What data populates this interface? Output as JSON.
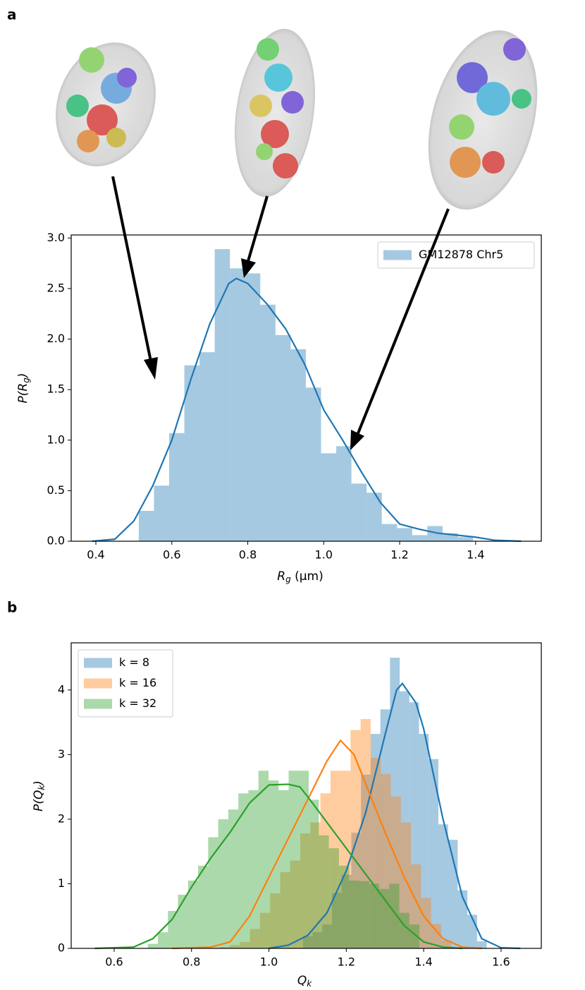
{
  "chart_data": [
    {
      "type": "histogram",
      "panel_label": "a",
      "xlabel": [
        "R",
        "g",
        " (μm)"
      ],
      "ylabel": [
        "P(",
        "R",
        "g",
        ")"
      ],
      "xlim": [
        0.335,
        1.573
      ],
      "ylim": [
        0,
        3.03
      ],
      "xticks": [
        0.4,
        0.6,
        0.8,
        {
          "value": 1,
          "label": "1.0"
        },
        1.2,
        1.4
      ],
      "yticks": [
        {
          "value": 0,
          "label": "0.0"
        },
        0.5,
        {
          "value": 1,
          "label": "1.0"
        },
        1.5,
        {
          "value": 2,
          "label": "2.0"
        },
        2.5,
        {
          "value": 3,
          "label": "3.0"
        }
      ],
      "legend": "upper right",
      "opacity": 0.4,
      "series": [
        {
          "name": "GM12878 Chr5",
          "color": "#1f77b4",
          "bins": [
            0.513,
            0.553,
            0.593,
            0.633,
            0.673,
            0.713,
            0.753,
            0.793,
            0.833,
            0.873,
            0.913,
            0.953,
            0.993,
            1.033,
            1.073,
            1.113,
            1.153,
            1.193,
            1.233,
            1.273,
            1.313,
            1.353,
            1.393
          ],
          "values": [
            0.3,
            0.55,
            1.07,
            1.74,
            1.87,
            2.89,
            2.7,
            2.65,
            2.34,
            2.04,
            1.9,
            1.52,
            0.87,
            0.94,
            0.57,
            0.48,
            0.17,
            0.13,
            0.06,
            0.15,
            0.08,
            0.04
          ],
          "kde_x": [
            0.39,
            0.45,
            0.5,
            0.55,
            0.6,
            0.65,
            0.7,
            0.75,
            0.77,
            0.8,
            0.85,
            0.9,
            0.95,
            1.0,
            1.05,
            1.1,
            1.15,
            1.2,
            1.25,
            1.3,
            1.35,
            1.4,
            1.45,
            1.52
          ],
          "kde_y": [
            0,
            0.02,
            0.2,
            0.55,
            1.0,
            1.6,
            2.15,
            2.55,
            2.6,
            2.55,
            2.35,
            2.1,
            1.75,
            1.3,
            1.0,
            0.68,
            0.38,
            0.17,
            0.12,
            0.08,
            0.06,
            0.04,
            0.01,
            0
          ]
        }
      ]
    },
    {
      "type": "histogram",
      "panel_label": "b",
      "xlabel": [
        "Q",
        "k"
      ],
      "ylabel": [
        "P(",
        "Q",
        "k",
        ")"
      ],
      "xlim": [
        0.489,
        1.704
      ],
      "ylim": [
        0,
        4.73
      ],
      "xticks": [
        0.6,
        0.8,
        {
          "value": 1,
          "label": "1.0"
        },
        1.2,
        1.4,
        1.6
      ],
      "yticks": [
        0,
        1,
        2,
        3,
        4
      ],
      "legend": "upper left",
      "opacity": 0.4,
      "series": [
        {
          "name": "k = 8",
          "color": "#1f77b4",
          "bins": [
            1.088,
            1.113,
            1.138,
            1.163,
            1.188,
            1.213,
            1.238,
            1.263,
            1.288,
            1.313,
            1.338,
            1.363,
            1.388,
            1.413,
            1.438,
            1.463,
            1.488,
            1.513,
            1.538,
            1.563
          ],
          "values": [
            0.19,
            0.25,
            0.37,
            0.86,
            1.14,
            1.79,
            2.69,
            3.32,
            3.7,
            4.5,
            3.98,
            3.81,
            3.32,
            2.93,
            1.92,
            1.68,
            0.9,
            0.52,
            0.11
          ],
          "kde_x": [
            1.0,
            1.05,
            1.1,
            1.15,
            1.2,
            1.25,
            1.3,
            1.33,
            1.345,
            1.38,
            1.4,
            1.45,
            1.5,
            1.55,
            1.6,
            1.65
          ],
          "kde_y": [
            0,
            0.05,
            0.2,
            0.55,
            1.2,
            2.1,
            3.3,
            4.0,
            4.1,
            3.8,
            3.4,
            2.0,
            0.8,
            0.15,
            0.01,
            0
          ]
        },
        {
          "name": "k = 16",
          "color": "#ff7f0e",
          "bins": [
            0.873,
            0.899,
            0.925,
            0.951,
            0.977,
            1.003,
            1.029,
            1.055,
            1.081,
            1.107,
            1.133,
            1.159,
            1.185,
            1.211,
            1.237,
            1.263,
            1.289,
            1.315,
            1.341,
            1.367,
            1.393,
            1.419,
            1.445,
            1.471
          ],
          "values": [
            0.02,
            0.05,
            0.1,
            0.3,
            0.55,
            0.85,
            1.18,
            1.36,
            1.78,
            1.95,
            2.4,
            2.75,
            2.75,
            3.38,
            3.55,
            2.95,
            2.7,
            2.35,
            1.95,
            1.3,
            0.78,
            0.38,
            0.12
          ],
          "kde_x": [
            0.75,
            0.85,
            0.9,
            0.95,
            1.0,
            1.05,
            1.1,
            1.15,
            1.185,
            1.22,
            1.25,
            1.3,
            1.35,
            1.4,
            1.45,
            1.5,
            1.55
          ],
          "kde_y": [
            0,
            0.02,
            0.1,
            0.5,
            1.1,
            1.7,
            2.3,
            2.9,
            3.22,
            3.0,
            2.55,
            1.8,
            1.1,
            0.5,
            0.15,
            0.02,
            0
          ]
        },
        {
          "name": "k = 32",
          "color": "#2ca02c",
          "bins": [
            0.687,
            0.713,
            0.739,
            0.765,
            0.791,
            0.817,
            0.843,
            0.869,
            0.895,
            0.921,
            0.947,
            0.973,
            0.999,
            1.025,
            1.051,
            1.077,
            1.103,
            1.129,
            1.155,
            1.181,
            1.207,
            1.233,
            1.259,
            1.285,
            1.311,
            1.337,
            1.363,
            1.389
          ],
          "values": [
            0.07,
            0.25,
            0.58,
            0.83,
            1.05,
            1.28,
            1.72,
            2.0,
            2.15,
            2.4,
            2.45,
            2.75,
            2.6,
            2.45,
            2.75,
            2.75,
            2.3,
            1.75,
            1.55,
            1.28,
            1.05,
            1.04,
            1.0,
            0.92,
            1.0,
            0.55,
            0.37
          ],
          "kde_x": [
            0.55,
            0.65,
            0.7,
            0.75,
            0.8,
            0.85,
            0.9,
            0.95,
            1.0,
            1.05,
            1.08,
            1.1,
            1.15,
            1.2,
            1.25,
            1.3,
            1.35,
            1.4,
            1.45,
            1.5
          ],
          "kde_y": [
            0,
            0.02,
            0.15,
            0.45,
            0.95,
            1.4,
            1.8,
            2.25,
            2.53,
            2.54,
            2.5,
            2.35,
            1.95,
            1.55,
            1.15,
            0.75,
            0.35,
            0.1,
            0.02,
            0
          ]
        }
      ]
    }
  ]
}
